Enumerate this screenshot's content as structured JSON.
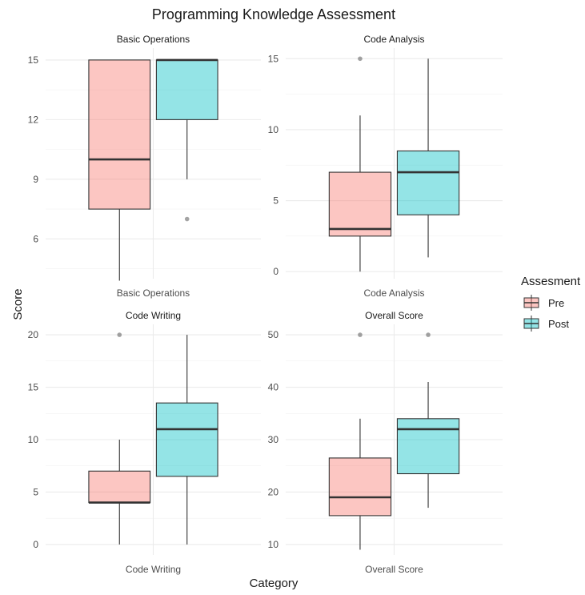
{
  "chart_data": {
    "type": "boxplot",
    "title": "Programming Knowledge Assessment",
    "xlabel": "Category",
    "ylabel": "Score",
    "legend": {
      "title": "Assesment",
      "placement": "right",
      "entries": [
        {
          "name": "Pre",
          "color": "#F8766D"
        },
        {
          "name": "Post",
          "color": "#00BFC4"
        }
      ]
    },
    "grid": true,
    "facets": [
      {
        "title": "Basic Operations",
        "category": "Basic Operations",
        "ylim": [
          4,
          15.6
        ],
        "yticks": [
          6,
          9,
          12,
          15
        ],
        "boxes": [
          {
            "series": "Pre",
            "q1": 7.5,
            "median": 10,
            "q3": 15,
            "whisker_low": 3.9,
            "whisker_high": 15,
            "outliers": []
          },
          {
            "series": "Post",
            "q1": 12,
            "median": 15,
            "q3": 15,
            "whisker_low": 9,
            "whisker_high": 15,
            "outliers": [
              7
            ]
          }
        ]
      },
      {
        "title": "Code Analysis",
        "category": "Code Analysis",
        "ylim": [
          -0.5,
          15.75
        ],
        "yticks": [
          0,
          5,
          10,
          15
        ],
        "boxes": [
          {
            "series": "Pre",
            "q1": 2.5,
            "median": 3,
            "q3": 7,
            "whisker_low": 0,
            "whisker_high": 11,
            "outliers": [
              15
            ]
          },
          {
            "series": "Post",
            "q1": 4,
            "median": 7,
            "q3": 8.5,
            "whisker_low": 1,
            "whisker_high": 15,
            "outliers": []
          }
        ]
      },
      {
        "title": "Code Writing",
        "category": "Code Writing",
        "ylim": [
          -1,
          21
        ],
        "yticks": [
          0,
          5,
          10,
          15,
          20
        ],
        "boxes": [
          {
            "series": "Pre",
            "q1": 4,
            "median": 4,
            "q3": 7,
            "whisker_low": 0,
            "whisker_high": 10,
            "outliers": [
              20
            ]
          },
          {
            "series": "Post",
            "q1": 6.5,
            "median": 11,
            "q3": 13.5,
            "whisker_low": 0,
            "whisker_high": 20,
            "outliers": []
          }
        ]
      },
      {
        "title": "Overall Score",
        "category": "Overall Score",
        "ylim": [
          8,
          52
        ],
        "yticks": [
          10,
          20,
          30,
          40,
          50
        ],
        "boxes": [
          {
            "series": "Pre",
            "q1": 15.5,
            "median": 19,
            "q3": 26.5,
            "whisker_low": 9,
            "whisker_high": 34,
            "outliers": [
              50
            ]
          },
          {
            "series": "Post",
            "q1": 23.5,
            "median": 32,
            "q3": 34,
            "whisker_low": 17,
            "whisker_high": 41,
            "outliers": [
              50
            ]
          }
        ]
      }
    ]
  }
}
